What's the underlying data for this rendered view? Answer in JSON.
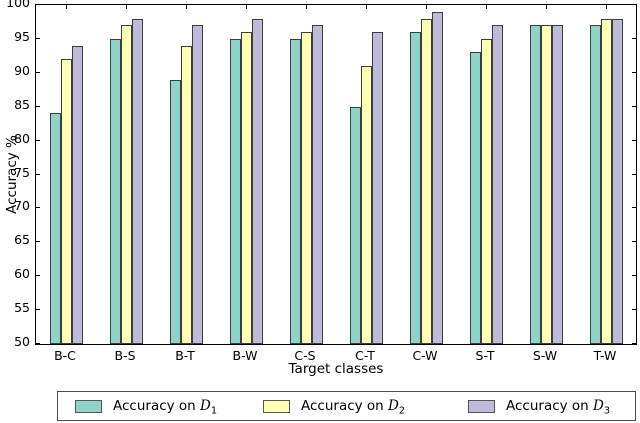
{
  "chart_data": {
    "type": "bar",
    "title": "",
    "xlabel": "Target classes",
    "ylabel": "Accuracy %",
    "ylim": [
      50,
      100
    ],
    "yticks": [
      50,
      55,
      60,
      65,
      70,
      75,
      80,
      85,
      90,
      95,
      100
    ],
    "categories": [
      "B-C",
      "B-S",
      "B-T",
      "B-W",
      "C-S",
      "C-T",
      "C-W",
      "S-T",
      "S-W",
      "T-W"
    ],
    "series": [
      {
        "name": "Accuracy on D1",
        "label_prefix": "Accuracy on ",
        "label_var": "D",
        "label_sub": "1",
        "color": "#8dd3c7",
        "values": [
          84,
          95,
          89,
          95,
          95,
          85,
          96,
          93,
          97,
          97
        ]
      },
      {
        "name": "Accuracy on D2",
        "label_prefix": "Accuracy on ",
        "label_var": "D",
        "label_sub": "2",
        "color": "#ffffb3",
        "values": [
          92,
          97,
          94,
          96,
          96,
          91,
          98,
          95,
          97,
          98
        ]
      },
      {
        "name": "Accuracy on D3",
        "label_prefix": "Accuracy on ",
        "label_var": "D",
        "label_sub": "3",
        "color": "#bebada",
        "values": [
          94,
          98,
          97,
          98,
          97,
          96,
          99,
          97,
          97,
          98
        ]
      }
    ],
    "bar_edge_color": "#3d3d3d",
    "axis_color": "#000000",
    "legend_position": "bottom",
    "grid": false
  }
}
